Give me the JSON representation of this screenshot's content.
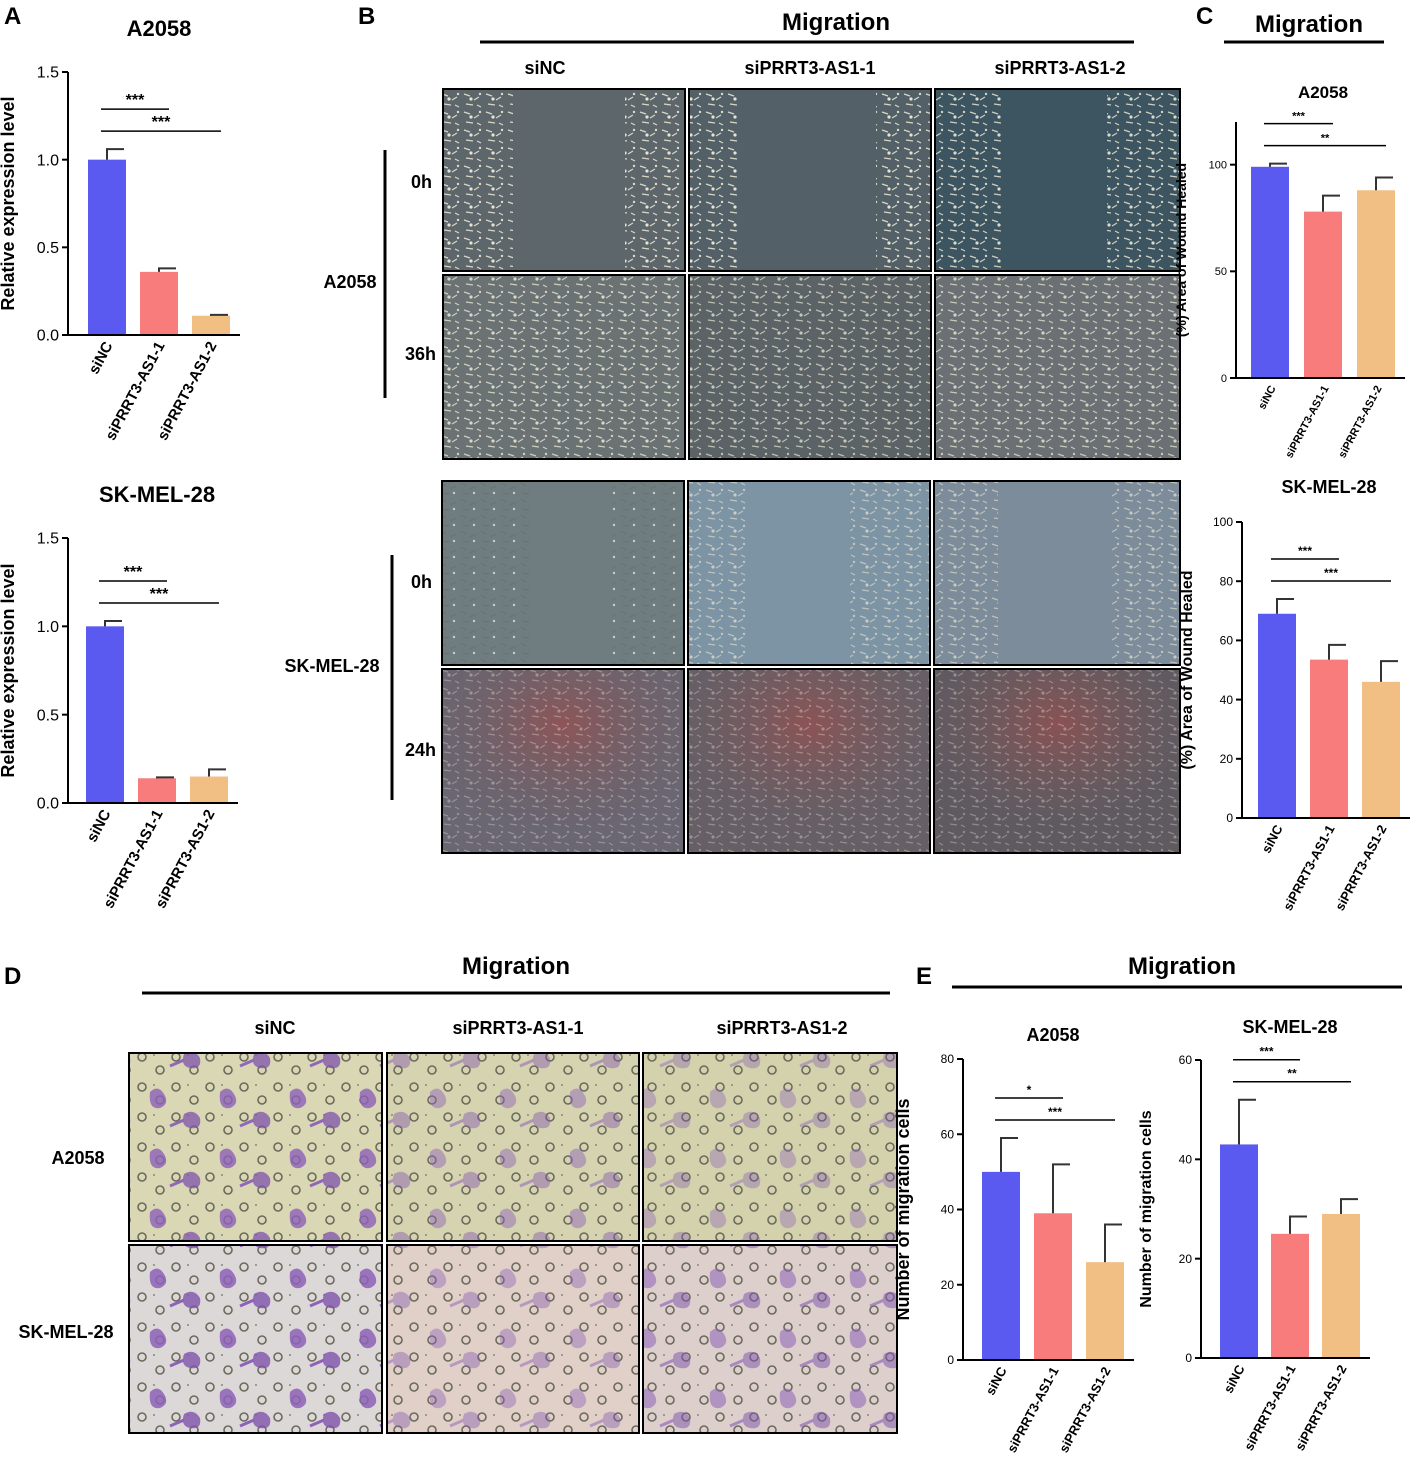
{
  "panel_letters": {
    "A": "A",
    "B": "B",
    "C": "C",
    "D": "D",
    "E": "E"
  },
  "colors": {
    "siNC": "#5a5af0",
    "siPRRT3_AS1_1": "#f87c7c",
    "siPRRT3_AS1_2": "#f1bf84"
  },
  "panelB": {
    "title": "Migration",
    "columns": [
      "siNC",
      "siPRRT3-AS1-1",
      "siPRRT3-AS1-2"
    ],
    "cell_lines": [
      "A2058",
      "SK-MEL-28"
    ],
    "times_a2058": [
      "0h",
      "36h"
    ],
    "times_skmel": [
      "0h",
      "24h"
    ]
  },
  "panelC": {
    "title": "Migration"
  },
  "panelD": {
    "title": "Migration",
    "columns": [
      "siNC",
      "siPRRT3-AS1-1",
      "siPRRT3-AS1-2"
    ],
    "rows": [
      "A2058",
      "SK-MEL-28"
    ]
  },
  "panelE": {
    "title": "Migration"
  },
  "chart_data": [
    {
      "panel": "A",
      "type": "bar",
      "title": "A2058",
      "xlabel": "",
      "ylabel": "Relative expression level",
      "categories": [
        "siNC",
        "siPRRT3-AS1-1",
        "siPRRT3-AS1-2"
      ],
      "values": [
        1.0,
        0.36,
        0.11
      ],
      "errors": [
        0.06,
        0.02,
        0.005
      ],
      "ylim": [
        0,
        1.5
      ],
      "yticks": [
        "0.0",
        "0.5",
        "1.0",
        "1.5"
      ],
      "significance": [
        {
          "label": "***",
          "from": 0,
          "to": 1
        },
        {
          "label": "***",
          "from": 0,
          "to": 2
        }
      ]
    },
    {
      "panel": "A",
      "type": "bar",
      "title": "SK-MEL-28",
      "xlabel": "",
      "ylabel": "Relative expression level",
      "categories": [
        "siNC",
        "siPRRT3-AS1-1",
        "siPRRT3-AS1-2"
      ],
      "values": [
        1.0,
        0.14,
        0.15
      ],
      "errors": [
        0.03,
        0.005,
        0.04
      ],
      "ylim": [
        0,
        1.5
      ],
      "yticks": [
        "0.0",
        "0.5",
        "1.0",
        "1.5"
      ],
      "significance": [
        {
          "label": "***",
          "from": 0,
          "to": 1
        },
        {
          "label": "***",
          "from": 0,
          "to": 2
        }
      ]
    },
    {
      "panel": "C",
      "type": "bar",
      "title": "A2058",
      "xlabel": "",
      "ylabel": "(%) Area of Wound Healed",
      "categories": [
        "siNC",
        "siPRRT3-AS1-1",
        "siPRRT3-AS1-2"
      ],
      "values": [
        99,
        78,
        88
      ],
      "errors": [
        1.5,
        7.5,
        6
      ],
      "ylim": [
        0,
        120
      ],
      "yticks": [
        "0",
        "50",
        "100"
      ],
      "significance": [
        {
          "label": "***",
          "from": 0,
          "to": 1
        },
        {
          "label": "**",
          "from": 0,
          "to": 2
        }
      ]
    },
    {
      "panel": "C",
      "type": "bar",
      "title": "SK-MEL-28",
      "xlabel": "",
      "ylabel": "(%) Area of Wound Healed",
      "categories": [
        "siNC",
        "siPRRT3-AS1-1",
        "siPRRT3-AS1-2"
      ],
      "values": [
        69,
        53.5,
        46
      ],
      "errors": [
        5,
        5,
        7
      ],
      "ylim": [
        0,
        100
      ],
      "yticks": [
        "0",
        "20",
        "40",
        "60",
        "80",
        "100"
      ],
      "significance": [
        {
          "label": "***",
          "from": 0,
          "to": 1
        },
        {
          "label": "***",
          "from": 0,
          "to": 2
        }
      ]
    },
    {
      "panel": "E",
      "type": "bar",
      "title": "A2058",
      "xlabel": "",
      "ylabel": "Number of migration cells",
      "categories": [
        "siNC",
        "siPRRT3-AS1-1",
        "siPRRT3-AS1-2"
      ],
      "values": [
        50,
        39,
        26
      ],
      "errors": [
        9,
        13,
        10
      ],
      "ylim": [
        0,
        80
      ],
      "yticks": [
        "0",
        "20",
        "40",
        "60",
        "80"
      ],
      "significance": [
        {
          "label": "*",
          "from": 0,
          "to": 1
        },
        {
          "label": "***",
          "from": 0,
          "to": 2
        }
      ]
    },
    {
      "panel": "E",
      "type": "bar",
      "title": "SK-MEL-28",
      "xlabel": "",
      "ylabel": "Number of migration cells",
      "categories": [
        "siNC",
        "siPRRT3-AS1-1",
        "siPRRT3-AS1-2"
      ],
      "values": [
        43,
        25,
        29
      ],
      "errors": [
        9,
        3.5,
        3
      ],
      "ylim": [
        0,
        60
      ],
      "yticks": [
        "0",
        "20",
        "40",
        "60"
      ],
      "significance": [
        {
          "label": "***",
          "from": 0,
          "to": 1
        },
        {
          "label": "**",
          "from": 0,
          "to": 2
        }
      ]
    }
  ]
}
